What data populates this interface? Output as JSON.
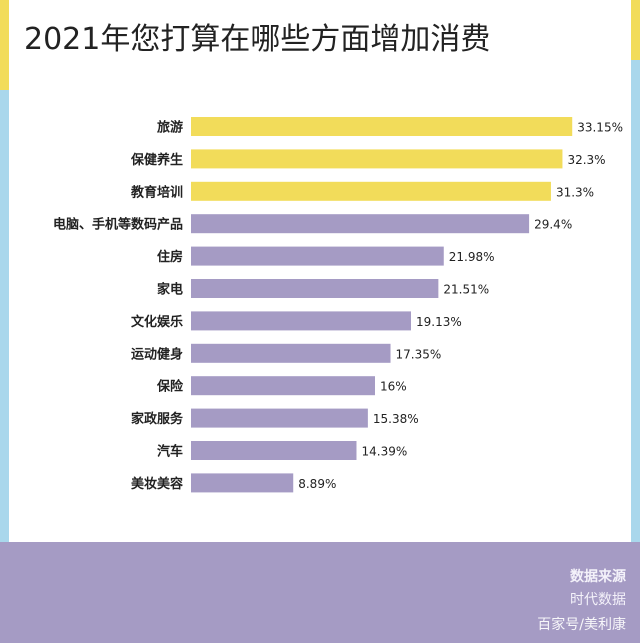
{
  "colors": {
    "highlight": "#f2dc5a",
    "normal": "#a59bc4",
    "stripe_blue": "#a9d7ec",
    "footer": "#a59bc4"
  },
  "chart_data": {
    "type": "bar",
    "orientation": "horizontal",
    "title": "2021年您打算在哪些方面增加消费",
    "categories": [
      "旅游",
      "保健养生",
      "教育培训",
      "电脑、手机等数码产品",
      "住房",
      "家电",
      "文化娱乐",
      "运动健身",
      "保险",
      "家政服务",
      "汽车",
      "美妆美容"
    ],
    "values": [
      33.15,
      32.3,
      31.3,
      29.4,
      21.98,
      21.51,
      19.13,
      17.35,
      16,
      15.38,
      14.39,
      8.89
    ],
    "labels": [
      "33.15%",
      "32.3%",
      "31.3%",
      "29.4%",
      "21.98%",
      "21.51%",
      "19.13%",
      "17.35%",
      "16%",
      "15.38%",
      "14.39%",
      "8.89%"
    ],
    "highlighted_top": 3,
    "unit": "%",
    "xlabel": "",
    "ylabel": "",
    "grid": false,
    "legend": "none"
  },
  "footer": {
    "source_label": "数据来源",
    "source_value": "时代数据",
    "watermark": "百家号/美利康"
  }
}
